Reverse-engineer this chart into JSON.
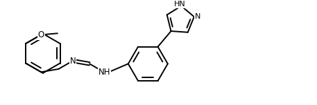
{
  "line_color": "#000000",
  "bg_color": "#ffffff",
  "lw": 1.4,
  "figsize": [
    4.57,
    1.52
  ],
  "dpi": 100,
  "font_size": 8.5,
  "font_family": "DejaVu Sans",
  "xlim": [
    0,
    9.14
  ],
  "ylim": [
    0,
    3.04
  ]
}
